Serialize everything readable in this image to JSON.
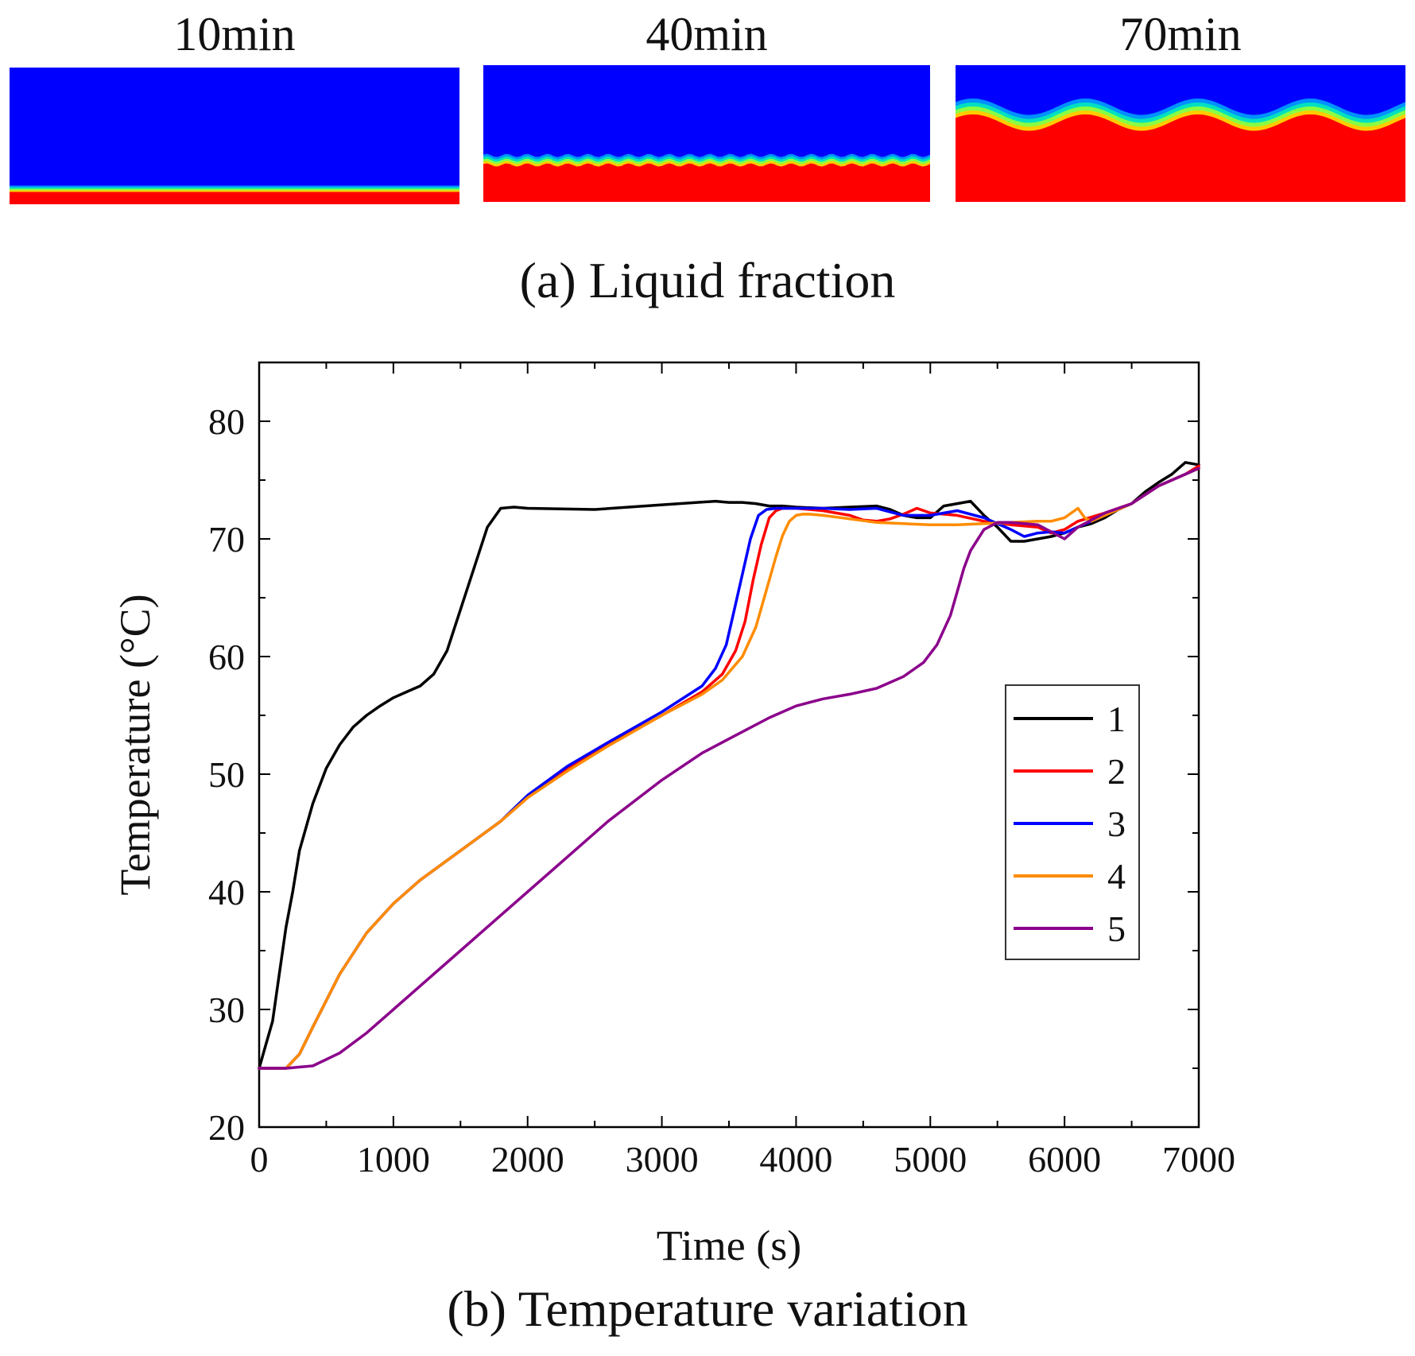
{
  "panel_a": {
    "caption": "(a) Liquid fraction",
    "snapshots": [
      {
        "label": "10min",
        "melt_fraction": 0.09,
        "wave_amplitude": 0.0,
        "waves": 0
      },
      {
        "label": "40min",
        "melt_fraction": 0.27,
        "wave_amplitude": 0.012,
        "waves": 22
      },
      {
        "label": "70min",
        "melt_fraction": 0.58,
        "wave_amplitude": 0.06,
        "waves": 4
      }
    ],
    "colors": {
      "solid": "#0000ff",
      "liquid": "#ff0000",
      "interface": [
        "#ffcc00",
        "#88ff44",
        "#00e0c0",
        "#0090ff"
      ]
    }
  },
  "chart_data": {
    "type": "line",
    "title": "",
    "caption": "(b) Temperature variation",
    "xlabel": "Time (s)",
    "ylabel": "Temperature (°C)",
    "xlim": [
      0,
      7000
    ],
    "ylim": [
      20,
      85
    ],
    "xticks": [
      0,
      1000,
      2000,
      3000,
      4000,
      5000,
      6000,
      7000
    ],
    "yticks": [
      20,
      30,
      40,
      50,
      60,
      70,
      80
    ],
    "grid": false,
    "legend_position": "right",
    "series": [
      {
        "name": "1",
        "color": "#000000",
        "x": [
          0,
          50,
          100,
          150,
          200,
          250,
          300,
          400,
          500,
          600,
          700,
          800,
          900,
          1000,
          1100,
          1200,
          1300,
          1400,
          1500,
          1600,
          1700,
          1800,
          1900,
          2000,
          2500,
          3000,
          3400,
          3500,
          3600,
          3700,
          3800,
          3900,
          4000,
          4200,
          4400,
          4600,
          4700,
          4800,
          4900,
          5000,
          5100,
          5200,
          5300,
          5400,
          5500,
          5600,
          5700,
          5800,
          5900,
          6000,
          6100,
          6200,
          6300,
          6400,
          6500,
          6600,
          6700,
          6800,
          6900,
          7000
        ],
        "y": [
          25,
          27,
          29,
          33,
          37,
          40,
          43.5,
          47.5,
          50.5,
          52.5,
          54,
          55,
          55.8,
          56.5,
          57,
          57.5,
          58.5,
          60.5,
          64,
          67.5,
          71,
          72.6,
          72.7,
          72.6,
          72.5,
          72.9,
          73.2,
          73.1,
          73.1,
          73,
          72.8,
          72.8,
          72.7,
          72.6,
          72.7,
          72.8,
          72.5,
          72,
          71.8,
          71.8,
          72.8,
          73,
          73.2,
          72,
          71,
          69.8,
          69.8,
          70,
          70.2,
          70.5,
          71,
          71.3,
          71.8,
          72.5,
          73,
          74,
          74.8,
          75.5,
          76.5,
          76.3
        ]
      },
      {
        "name": "2",
        "color": "#ff0000",
        "x": [
          0,
          200,
          300,
          400,
          600,
          800,
          1000,
          1200,
          1500,
          1800,
          2000,
          2300,
          2600,
          3000,
          3300,
          3450,
          3550,
          3620,
          3680,
          3740,
          3800,
          3850,
          3900,
          4000,
          4200,
          4400,
          4500,
          4600,
          4700,
          4800,
          4900,
          5000,
          5200,
          5400,
          5600,
          5800,
          5900,
          6000,
          6100,
          6300,
          6500,
          6700,
          6900,
          7000
        ],
        "y": [
          25,
          25,
          26.2,
          28.5,
          33,
          36.5,
          39,
          41,
          43.5,
          46,
          48,
          50.5,
          52.5,
          55,
          57,
          58.5,
          60.5,
          63,
          66.5,
          69.5,
          71.8,
          72.4,
          72.6,
          72.6,
          72.4,
          72,
          71.6,
          71.5,
          71.7,
          72.1,
          72.6,
          72.2,
          72,
          71.5,
          71.2,
          71,
          70.5,
          70.8,
          71.5,
          72.2,
          73,
          74.5,
          75.5,
          76.2
        ]
      },
      {
        "name": "3",
        "color": "#0000ff",
        "x": [
          0,
          200,
          300,
          400,
          600,
          800,
          1000,
          1200,
          1500,
          1800,
          2000,
          2300,
          2600,
          3000,
          3300,
          3400,
          3480,
          3540,
          3600,
          3660,
          3720,
          3780,
          3850,
          4000,
          4200,
          4400,
          4600,
          4800,
          5000,
          5200,
          5400,
          5600,
          5700,
          5800,
          5900,
          6000,
          6100,
          6300,
          6500,
          6700,
          6900,
          7000
        ],
        "y": [
          25,
          25,
          26.2,
          28.5,
          33,
          36.5,
          39,
          41,
          43.5,
          46,
          48.2,
          50.7,
          52.7,
          55.3,
          57.5,
          59,
          61,
          64,
          67,
          70,
          72,
          72.5,
          72.6,
          72.6,
          72.6,
          72.5,
          72.6,
          72,
          72,
          72.4,
          71.8,
          70.8,
          70.2,
          70.5,
          70.6,
          70.5,
          71,
          72,
          73,
          74.5,
          75.5,
          76
        ]
      },
      {
        "name": "4",
        "color": "#ff8c00",
        "x": [
          0,
          200,
          300,
          400,
          600,
          800,
          1000,
          1200,
          1500,
          1800,
          2000,
          2300,
          2600,
          3000,
          3300,
          3450,
          3600,
          3700,
          3800,
          3850,
          3900,
          3950,
          4000,
          4050,
          4100,
          4200,
          4400,
          4600,
          4800,
          5000,
          5200,
          5400,
          5600,
          5800,
          5900,
          6000,
          6100,
          6150,
          6200,
          6300,
          6500,
          6700,
          6900,
          7000
        ],
        "y": [
          25,
          25,
          26.2,
          28.5,
          33,
          36.5,
          39,
          41,
          43.5,
          46,
          48,
          50.3,
          52.4,
          55,
          56.8,
          58,
          60,
          62.5,
          66.5,
          68.5,
          70.3,
          71.5,
          72,
          72.1,
          72.1,
          72,
          71.7,
          71.4,
          71.3,
          71.2,
          71.2,
          71.3,
          71.4,
          71.5,
          71.5,
          71.8,
          72.6,
          71.8,
          71.5,
          72,
          73,
          74.5,
          75.5,
          76
        ]
      },
      {
        "name": "5",
        "color": "#8b008b",
        "x": [
          0,
          200,
          400,
          600,
          800,
          1000,
          1200,
          1500,
          1800,
          2000,
          2300,
          2600,
          3000,
          3300,
          3500,
          3800,
          4000,
          4200,
          4400,
          4600,
          4800,
          4950,
          5050,
          5150,
          5200,
          5250,
          5300,
          5400,
          5500,
          5600,
          5700,
          5800,
          5900,
          6000,
          6100,
          6300,
          6500,
          6700,
          6900,
          7000
        ],
        "y": [
          25,
          25,
          25.2,
          26.3,
          28,
          30,
          32,
          35,
          38,
          40,
          43,
          46,
          49.5,
          51.8,
          53,
          54.8,
          55.8,
          56.4,
          56.8,
          57.3,
          58.3,
          59.5,
          61,
          63.5,
          65.5,
          67.5,
          69,
          70.8,
          71.4,
          71.4,
          71.3,
          71.2,
          70.6,
          70,
          71,
          72.2,
          73,
          74.5,
          75.5,
          76
        ]
      }
    ]
  }
}
